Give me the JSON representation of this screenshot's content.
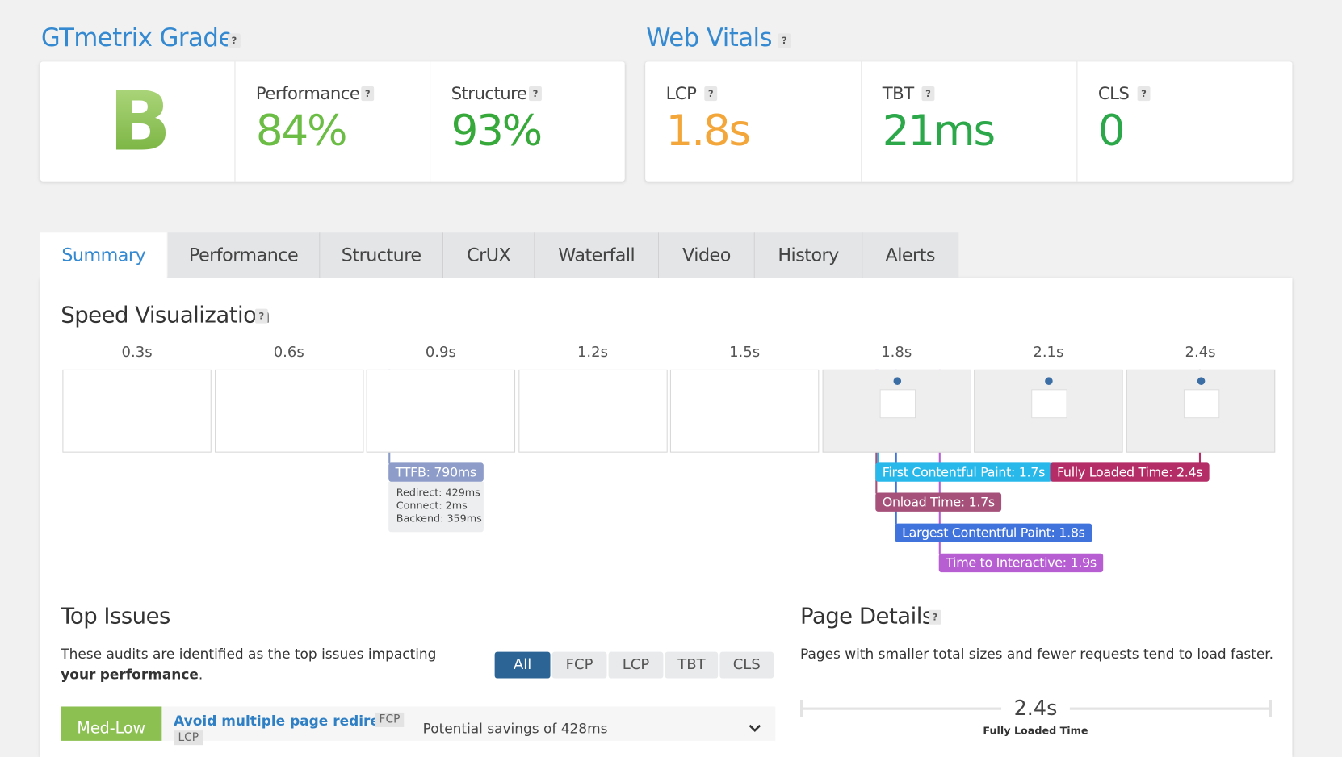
{
  "help_icon": "?",
  "grade": {
    "title": "GTmetrix Grade",
    "letter": "B",
    "metrics": [
      {
        "label": "Performance",
        "value": "84%"
      },
      {
        "label": "Structure",
        "value": "93%"
      }
    ]
  },
  "web_vitals": {
    "title": "Web Vitals",
    "metrics": [
      {
        "label": "LCP",
        "value": "1.8s"
      },
      {
        "label": "TBT",
        "value": "21ms"
      },
      {
        "label": "CLS",
        "value": "0"
      }
    ]
  },
  "tabs": [
    "Summary",
    "Performance",
    "Structure",
    "CrUX",
    "Waterfall",
    "Video",
    "History",
    "Alerts"
  ],
  "speed_visualization": {
    "title": "Speed Visualization",
    "times": [
      "0.3s",
      "0.6s",
      "0.9s",
      "1.2s",
      "1.5s",
      "1.8s",
      "2.1s",
      "2.4s"
    ],
    "markers": {
      "ttfb": "TTFB: 790ms",
      "ttfb_details": [
        "Redirect: 429ms",
        "Connect: 2ms",
        "Backend: 359ms"
      ],
      "fcp": "First Contentful Paint: 1.7s",
      "fully_loaded": "Fully Loaded Time: 2.4s",
      "onload": "Onload Time: 1.7s",
      "lcp": "Largest Contentful Paint: 1.8s",
      "tti": "Time to Interactive: 1.9s"
    }
  },
  "top_issues": {
    "title": "Top Issues",
    "description": "These audits are identified as the top issues impacting ",
    "description_bold_1": "your",
    "description_bold_2": "performance",
    "description_end": ".",
    "filters": [
      "All",
      "FCP",
      "LCP",
      "TBT",
      "CLS"
    ],
    "issues": [
      {
        "impact": "Med-Low",
        "title": "Avoid multiple page redirects",
        "tags": [
          "FCP",
          "LCP"
        ],
        "savings": "Potential savings of 428ms"
      }
    ]
  },
  "page_details": {
    "title": "Page Details",
    "description": "Pages with smaller total sizes and fewer requests tend to load faster.",
    "fully_loaded_value": "2.4s",
    "fully_loaded_label": "Fully Loaded Time"
  }
}
